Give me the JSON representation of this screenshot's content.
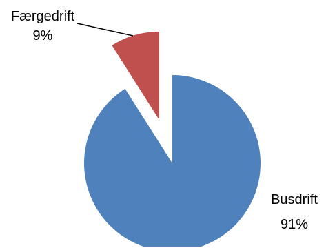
{
  "chart_data": {
    "type": "pie",
    "title": "",
    "slices": [
      {
        "label": "Busdrift",
        "value": 91,
        "value_label": "91%",
        "color": "#4F81BD"
      },
      {
        "label": "Færgedrift",
        "value": 9,
        "value_label": "9%",
        "color": "#C0504D"
      }
    ],
    "exploded": true,
    "legend": "none",
    "data_labels": "outside"
  }
}
